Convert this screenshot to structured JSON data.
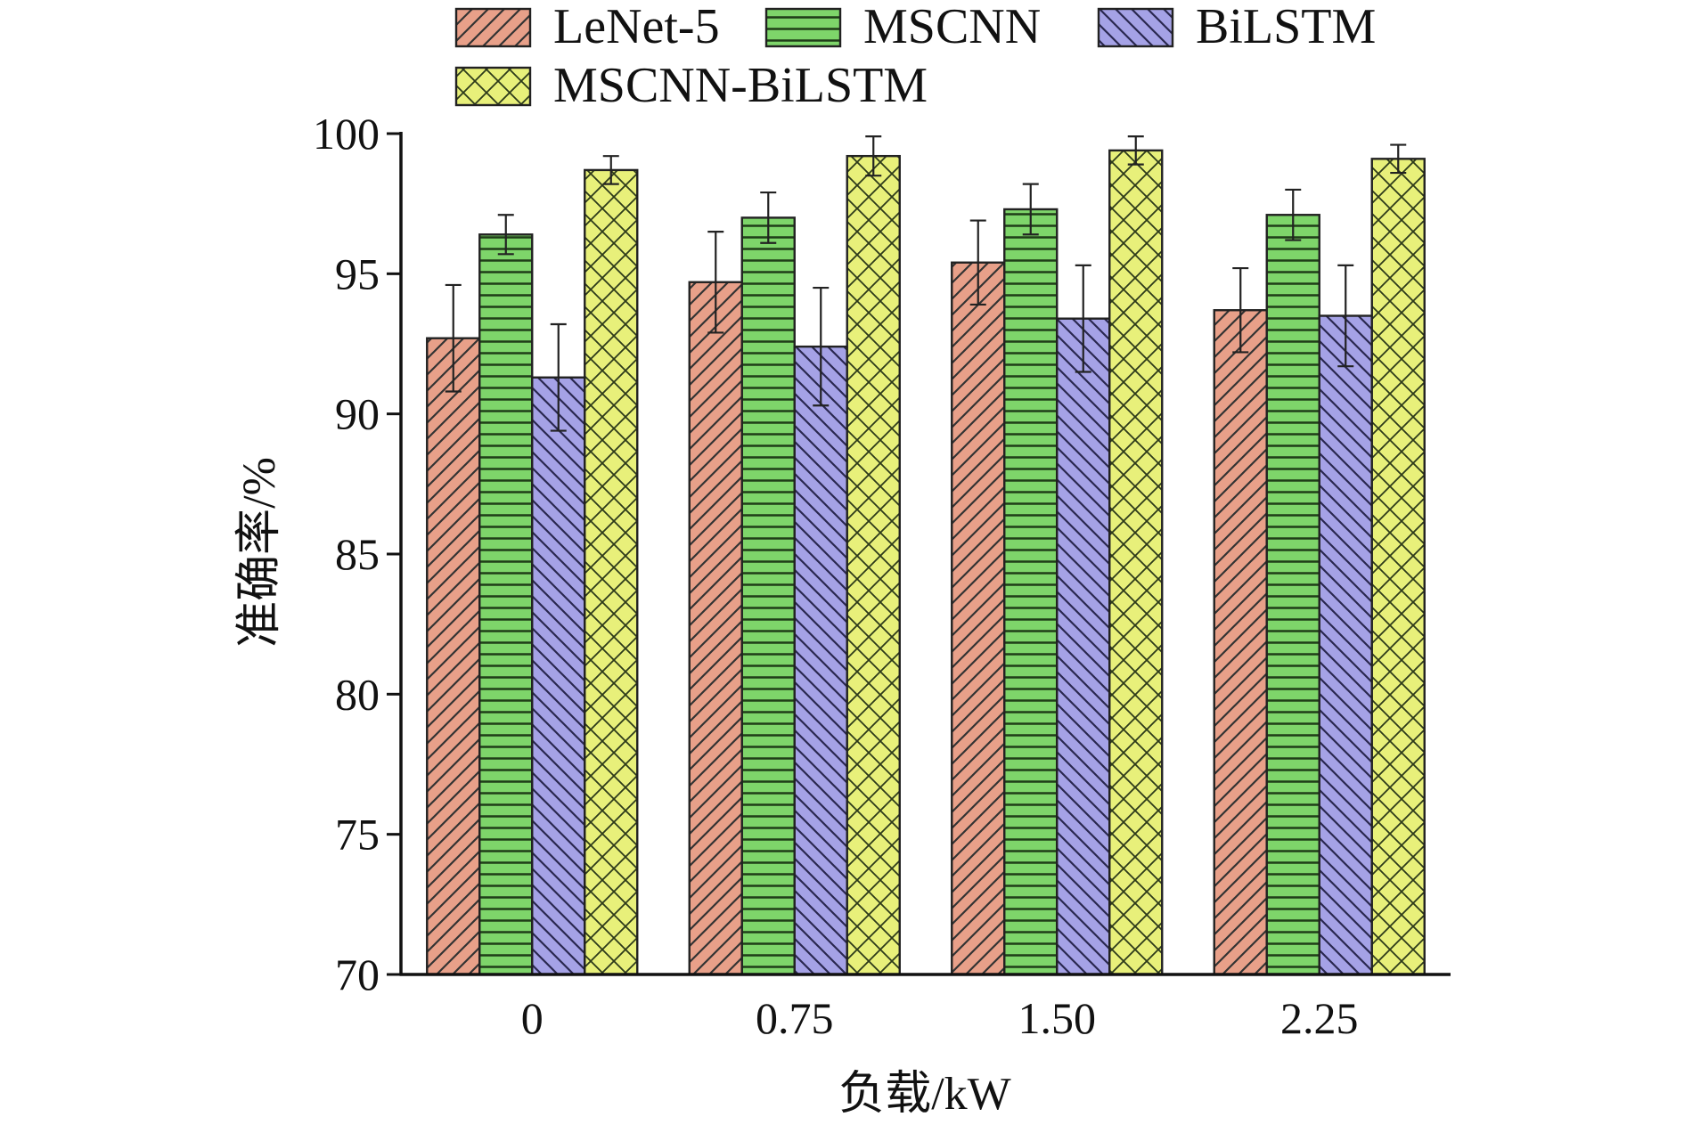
{
  "chart_data": {
    "type": "bar",
    "xlabel": "负载/kW",
    "ylabel": "准确率/%",
    "ylim": [
      70,
      100
    ],
    "yticks": [
      70,
      75,
      80,
      85,
      90,
      95,
      100
    ],
    "categories": [
      "0",
      "0.75",
      "1.50",
      "2.25"
    ],
    "grid": false,
    "legend_position": "top",
    "error_bars": true,
    "series": [
      {
        "name": "LeNet-5",
        "values": [
          92.7,
          94.7,
          95.4,
          93.7
        ],
        "errors": [
          1.9,
          1.8,
          1.5,
          1.5
        ],
        "color": "#e8a089",
        "pattern": "diagonal-forward"
      },
      {
        "name": "MSCNN",
        "values": [
          96.4,
          97.0,
          97.3,
          97.1
        ],
        "errors": [
          0.7,
          0.9,
          0.9,
          0.9
        ],
        "color": "#7ed56a",
        "pattern": "horizontal"
      },
      {
        "name": "BiLSTM",
        "values": [
          91.3,
          92.4,
          93.4,
          93.5
        ],
        "errors": [
          1.9,
          2.1,
          1.9,
          1.8
        ],
        "color": "#a5a2e6",
        "pattern": "diagonal-back"
      },
      {
        "name": "MSCNN-BiLSTM",
        "values": [
          98.7,
          99.2,
          99.4,
          99.1
        ],
        "errors": [
          0.5,
          0.7,
          0.5,
          0.5
        ],
        "color": "#e8f07a",
        "pattern": "crosshatch"
      }
    ]
  }
}
